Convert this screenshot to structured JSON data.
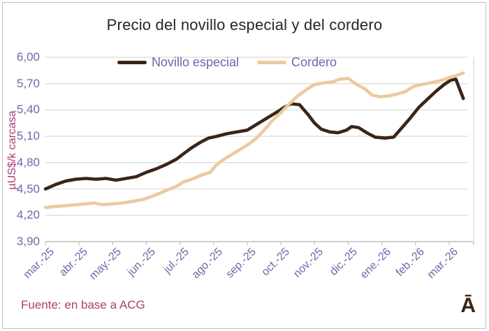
{
  "frame": {
    "title": "Precio del novillo especial y del cordero",
    "source": "Fuente: en base a ACG",
    "logo": "Ā"
  },
  "axis": {
    "y_label": "µUS$/k carcasa",
    "y_ticks": [
      "6,00",
      "5,70",
      "5,40",
      "5,10",
      "4,80",
      "4,50",
      "4,20",
      "3,90"
    ],
    "x_ticks": [
      "mar.-25",
      "abr.-25",
      "may.-25",
      "jun.-25",
      "jul.-25",
      "ago.-25",
      "sep.-25",
      "oct.-25",
      "nov.-25",
      "dic.-25",
      "ene.-26",
      "feb.-26",
      "mar.-26"
    ]
  },
  "legend": [
    {
      "label": "Novillo especial",
      "color": "#3C2418"
    },
    {
      "label": "Cordero",
      "color": "#EBCA9F"
    }
  ],
  "colors": {
    "grid": "#D9D9D9",
    "axis": "#BFBFBF",
    "tick_text": "#6A69A8",
    "accent_magenta": "#AB3C72",
    "title_text": "#262626",
    "logo_brown": "#3A2517",
    "border": "#BFBFBF"
  },
  "chart_data": {
    "type": "line",
    "title": "Precio del novillo especial y del cordero",
    "xlabel": "",
    "ylabel": "µUS$/k carcasa",
    "ylim": [
      3.9,
      6.0
    ],
    "y_tick_step": 0.3,
    "grid": true,
    "legend_position": "top",
    "x_tick_labels": [
      "mar.-25",
      "abr.-25",
      "may.-25",
      "jun.-25",
      "jul.-25",
      "ago.-25",
      "sep.-25",
      "oct.-25",
      "nov.-25",
      "dic.-25",
      "ene.-26",
      "feb.-26",
      "mar.-26"
    ],
    "x_unit": "months since mar-2025 (fractional = weeks within month)",
    "series": [
      {
        "name": "Novillo especial",
        "color": "#3C2418",
        "points": [
          [
            0,
            4.5
          ],
          [
            0.3,
            4.55
          ],
          [
            0.6,
            4.59
          ],
          [
            0.9,
            4.61
          ],
          [
            1.2,
            4.62
          ],
          [
            1.5,
            4.61
          ],
          [
            1.8,
            4.62
          ],
          [
            2.1,
            4.6
          ],
          [
            2.4,
            4.62
          ],
          [
            2.7,
            4.64
          ],
          [
            3.0,
            4.69
          ],
          [
            3.3,
            4.73
          ],
          [
            3.6,
            4.78
          ],
          [
            3.9,
            4.84
          ],
          [
            4.1,
            4.9
          ],
          [
            4.35,
            4.97
          ],
          [
            4.6,
            5.03
          ],
          [
            4.85,
            5.08
          ],
          [
            5.1,
            5.1
          ],
          [
            5.4,
            5.13
          ],
          [
            5.7,
            5.15
          ],
          [
            6.0,
            5.17
          ],
          [
            6.3,
            5.24
          ],
          [
            6.6,
            5.31
          ],
          [
            6.9,
            5.38
          ],
          [
            7.1,
            5.43
          ],
          [
            7.3,
            5.47
          ],
          [
            7.55,
            5.46
          ],
          [
            7.8,
            5.35
          ],
          [
            8.0,
            5.25
          ],
          [
            8.2,
            5.18
          ],
          [
            8.45,
            5.15
          ],
          [
            8.7,
            5.14
          ],
          [
            8.95,
            5.17
          ],
          [
            9.1,
            5.21
          ],
          [
            9.3,
            5.2
          ],
          [
            9.55,
            5.14
          ],
          [
            9.8,
            5.09
          ],
          [
            10.1,
            5.08
          ],
          [
            10.35,
            5.09
          ],
          [
            10.6,
            5.2
          ],
          [
            10.85,
            5.31
          ],
          [
            11.1,
            5.43
          ],
          [
            11.35,
            5.52
          ],
          [
            11.6,
            5.61
          ],
          [
            11.85,
            5.69
          ],
          [
            12.05,
            5.74
          ],
          [
            12.2,
            5.75
          ],
          [
            12.42,
            5.53
          ]
        ]
      },
      {
        "name": "Cordero",
        "color": "#EBCA9F",
        "points": [
          [
            0,
            4.29
          ],
          [
            0.3,
            4.3
          ],
          [
            0.6,
            4.31
          ],
          [
            0.9,
            4.32
          ],
          [
            1.2,
            4.33
          ],
          [
            1.45,
            4.34
          ],
          [
            1.7,
            4.32
          ],
          [
            2.0,
            4.33
          ],
          [
            2.3,
            4.34
          ],
          [
            2.6,
            4.36
          ],
          [
            2.9,
            4.38
          ],
          [
            3.2,
            4.42
          ],
          [
            3.45,
            4.46
          ],
          [
            3.7,
            4.5
          ],
          [
            3.95,
            4.54
          ],
          [
            4.1,
            4.58
          ],
          [
            4.35,
            4.61
          ],
          [
            4.65,
            4.66
          ],
          [
            4.9,
            4.69
          ],
          [
            5.05,
            4.76
          ],
          [
            5.2,
            4.81
          ],
          [
            5.4,
            4.86
          ],
          [
            5.7,
            4.93
          ],
          [
            6.0,
            5.0
          ],
          [
            6.25,
            5.07
          ],
          [
            6.5,
            5.17
          ],
          [
            6.75,
            5.28
          ],
          [
            7.0,
            5.37
          ],
          [
            7.25,
            5.47
          ],
          [
            7.5,
            5.56
          ],
          [
            7.75,
            5.63
          ],
          [
            8.0,
            5.69
          ],
          [
            8.3,
            5.71
          ],
          [
            8.55,
            5.72
          ],
          [
            8.75,
            5.75
          ],
          [
            9.0,
            5.76
          ],
          [
            9.25,
            5.69
          ],
          [
            9.5,
            5.64
          ],
          [
            9.7,
            5.57
          ],
          [
            9.95,
            5.55
          ],
          [
            10.2,
            5.56
          ],
          [
            10.45,
            5.58
          ],
          [
            10.7,
            5.61
          ],
          [
            10.95,
            5.67
          ],
          [
            11.2,
            5.69
          ],
          [
            11.45,
            5.71
          ],
          [
            11.7,
            5.73
          ],
          [
            11.95,
            5.76
          ],
          [
            12.2,
            5.79
          ],
          [
            12.42,
            5.82
          ]
        ]
      }
    ]
  }
}
